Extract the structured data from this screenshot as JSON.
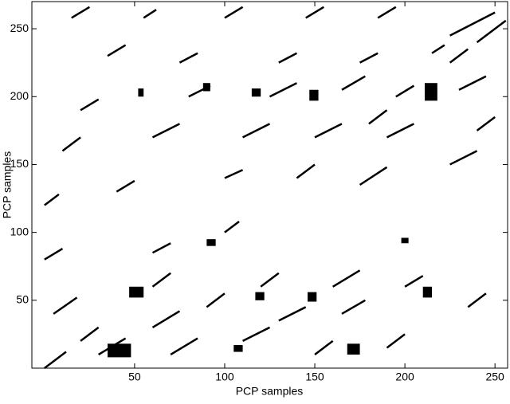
{
  "chart_data": {
    "type": "recurrence",
    "xlabel": "PCP samples",
    "ylabel": "PCP samples",
    "xlim": [
      -7,
      257
    ],
    "ylim": [
      0,
      270
    ],
    "xticks": [
      50,
      100,
      150,
      200,
      250
    ],
    "yticks": [
      50,
      100,
      150,
      200,
      250
    ],
    "color": "#000000",
    "segments": [
      [
        0,
        0,
        12,
        12
      ],
      [
        20,
        20,
        30,
        30
      ],
      [
        60,
        60,
        70,
        70
      ],
      [
        100,
        100,
        108,
        108
      ],
      [
        140,
        140,
        150,
        150
      ],
      [
        180,
        180,
        190,
        190
      ],
      [
        225,
        225,
        235,
        235
      ],
      [
        240,
        240,
        256,
        256
      ],
      [
        30,
        10,
        45,
        22
      ],
      [
        70,
        10,
        85,
        22
      ],
      [
        110,
        20,
        125,
        30
      ],
      [
        150,
        10,
        160,
        20
      ],
      [
        190,
        15,
        200,
        25
      ],
      [
        5,
        40,
        18,
        52
      ],
      [
        60,
        30,
        75,
        42
      ],
      [
        90,
        45,
        100,
        55
      ],
      [
        130,
        35,
        145,
        45
      ],
      [
        165,
        40,
        178,
        50
      ],
      [
        235,
        45,
        245,
        55
      ],
      [
        0,
        80,
        10,
        88
      ],
      [
        60,
        85,
        70,
        92
      ],
      [
        120,
        60,
        130,
        70
      ],
      [
        160,
        60,
        175,
        72
      ],
      [
        200,
        60,
        210,
        68
      ],
      [
        0,
        120,
        8,
        128
      ],
      [
        40,
        130,
        50,
        138
      ],
      [
        100,
        140,
        110,
        146
      ],
      [
        175,
        135,
        190,
        148
      ],
      [
        225,
        150,
        240,
        160
      ],
      [
        10,
        160,
        20,
        170
      ],
      [
        60,
        170,
        75,
        180
      ],
      [
        110,
        170,
        125,
        180
      ],
      [
        150,
        170,
        165,
        180
      ],
      [
        190,
        170,
        205,
        180
      ],
      [
        240,
        175,
        250,
        185
      ],
      [
        20,
        190,
        30,
        198
      ],
      [
        80,
        200,
        92,
        208
      ],
      [
        125,
        200,
        140,
        210
      ],
      [
        165,
        205,
        178,
        215
      ],
      [
        195,
        200,
        205,
        208
      ],
      [
        230,
        205,
        245,
        215
      ],
      [
        35,
        230,
        45,
        238
      ],
      [
        75,
        225,
        85,
        232
      ],
      [
        130,
        225,
        140,
        232
      ],
      [
        175,
        225,
        185,
        232
      ],
      [
        215,
        232,
        222,
        238
      ],
      [
        15,
        258,
        25,
        266
      ],
      [
        55,
        258,
        62,
        264
      ],
      [
        100,
        258,
        110,
        266
      ],
      [
        145,
        258,
        155,
        266
      ],
      [
        185,
        258,
        195,
        266
      ],
      [
        225,
        245,
        250,
        262
      ]
    ],
    "blobs": [
      [
        35,
        8,
        48,
        18
      ],
      [
        47,
        52,
        55,
        60
      ],
      [
        105,
        12,
        110,
        17
      ],
      [
        117,
        50,
        122,
        56
      ],
      [
        146,
        49,
        151,
        56
      ],
      [
        168,
        10,
        175,
        18
      ],
      [
        210,
        52,
        215,
        60
      ],
      [
        211,
        197,
        218,
        210
      ],
      [
        147,
        197,
        152,
        205
      ],
      [
        90,
        90,
        95,
        95
      ],
      [
        88,
        204,
        92,
        210
      ],
      [
        198,
        92,
        202,
        96
      ],
      [
        115,
        200,
        120,
        206
      ],
      [
        52,
        200,
        55,
        206
      ]
    ]
  }
}
